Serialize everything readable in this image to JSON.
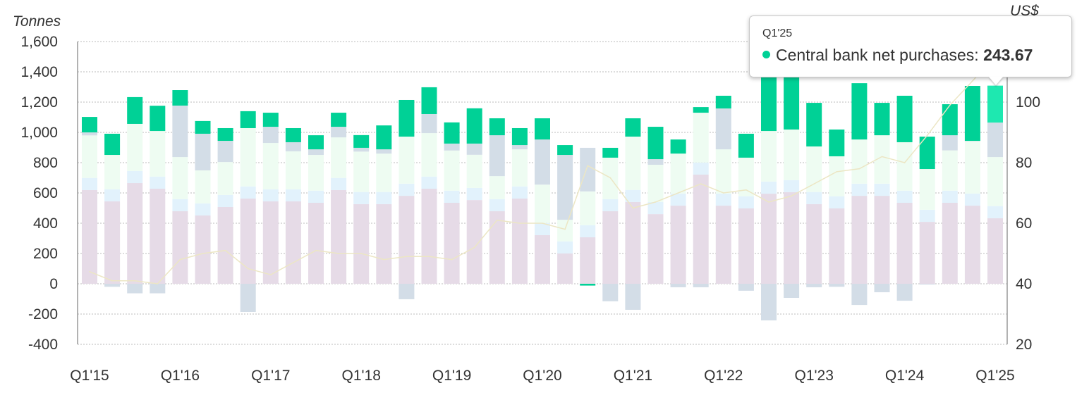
{
  "chart_data": {
    "type": "bar",
    "stacked": true,
    "left_axis": {
      "label": "Tonnes",
      "range": [
        -400,
        1600
      ],
      "ticks": [
        "1,600",
        "1,400",
        "1,200",
        "1,000",
        "800",
        "600",
        "400",
        "200",
        "0",
        "-200",
        "-400"
      ],
      "tick_values": [
        1600,
        1400,
        1200,
        1000,
        800,
        600,
        400,
        200,
        0,
        -200,
        -400
      ]
    },
    "right_axis": {
      "label": "US$",
      "range": [
        20,
        120
      ],
      "ticks": [
        "100",
        "80",
        "60",
        "40",
        "20"
      ],
      "tick_values": [
        100,
        80,
        60,
        40,
        20
      ]
    },
    "x_tick_labels": [
      "Q1'15",
      "Q1'16",
      "Q1'17",
      "Q1'18",
      "Q1'19",
      "Q1'20",
      "Q1'21",
      "Q1'22",
      "Q1'23",
      "Q1'24",
      "Q1'25"
    ],
    "categories": [
      "Q1'15",
      "Q2'15",
      "Q3'15",
      "Q4'15",
      "Q1'16",
      "Q2'16",
      "Q3'16",
      "Q4'16",
      "Q1'17",
      "Q2'17",
      "Q3'17",
      "Q4'17",
      "Q1'18",
      "Q2'18",
      "Q3'18",
      "Q4'18",
      "Q1'19",
      "Q2'19",
      "Q3'19",
      "Q4'19",
      "Q1'20",
      "Q2'20",
      "Q3'20",
      "Q4'20",
      "Q1'21",
      "Q2'21",
      "Q3'21",
      "Q4'21",
      "Q1'22",
      "Q2'22",
      "Q3'22",
      "Q4'22",
      "Q1'23",
      "Q2'23",
      "Q3'23",
      "Q4'23",
      "Q1'24",
      "Q2'24",
      "Q3'24",
      "Q4'24",
      "Q1'25"
    ],
    "grid": true,
    "series": [
      {
        "key": "jewellery",
        "color": "#e6dbe7",
        "values": [
          619,
          544,
          665,
          628,
          479,
          451,
          507,
          563,
          544,
          544,
          535,
          619,
          526,
          526,
          581,
          628,
          535,
          553,
          479,
          563,
          321,
          200,
          307,
          479,
          540,
          460,
          516,
          721,
          516,
          498,
          595,
          605,
          526,
          498,
          581,
          581,
          535,
          409,
          535,
          516,
          433
        ]
      },
      {
        "key": "technology",
        "color": "#e2f2fc",
        "values": [
          80,
          80,
          80,
          80,
          80,
          80,
          80,
          80,
          80,
          80,
          80,
          80,
          80,
          80,
          80,
          80,
          80,
          80,
          80,
          80,
          80,
          80,
          80,
          80,
          80,
          80,
          80,
          80,
          80,
          80,
          80,
          80,
          80,
          80,
          80,
          80,
          80,
          80,
          80,
          80,
          80
        ]
      },
      {
        "key": "bar_coin",
        "color": "#eefcf2",
        "values": [
          281,
          227,
          311,
          301,
          278,
          218,
          217,
          385,
          306,
          251,
          236,
          268,
          267,
          254,
          311,
          287,
          265,
          219,
          152,
          245,
          254,
          143,
          223,
          274,
          352,
          246,
          264,
          329,
          292,
          255,
          334,
          334,
          301,
          264,
          292,
          320,
          320,
          269,
          266,
          348,
          324
        ]
      },
      {
        "key": "etfs",
        "color": "#d3dde7",
        "values": [
          20,
          -20,
          -63,
          -63,
          340,
          242,
          140,
          -186,
          107,
          60,
          37,
          70,
          25,
          28,
          -102,
          126,
          46,
          74,
          270,
          28,
          298,
          428,
          288,
          -116,
          -172,
          37,
          -23,
          -23,
          270,
          -46,
          -242,
          -93,
          -23,
          -20,
          -140,
          -56,
          -112,
          -5,
          100,
          0,
          228
        ]
      },
      {
        "key": "central_banks",
        "name": "Central bank net purchases",
        "color": "#00d196",
        "highlight_color": "#1ee8b0",
        "values": [
          102,
          140,
          177,
          167,
          102,
          84,
          84,
          112,
          93,
          93,
          93,
          93,
          84,
          158,
          242,
          177,
          140,
          233,
          112,
          112,
          140,
          65,
          -12,
          65,
          121,
          214,
          93,
          37,
          84,
          158,
          459,
          417,
          288,
          177,
          372,
          214,
          307,
          214,
          205,
          363,
          243.67
        ]
      }
    ],
    "line": {
      "key": "price",
      "axis": "right",
      "color": "#ece6c4",
      "values": [
        44,
        41,
        41,
        40,
        48,
        50,
        51,
        45,
        43,
        47,
        51,
        50,
        50,
        48,
        49,
        49,
        48,
        52,
        61,
        60,
        60,
        58,
        79,
        75,
        65,
        67,
        70,
        73,
        70,
        71,
        67,
        69,
        73,
        77,
        78,
        82,
        80,
        89,
        99,
        107,
        115
      ]
    },
    "highlighted_index": 40
  },
  "tooltip": {
    "title": "Q1'25",
    "series_name": "Central bank net purchases:",
    "value": "243.67",
    "dot_color": "#00d196"
  }
}
